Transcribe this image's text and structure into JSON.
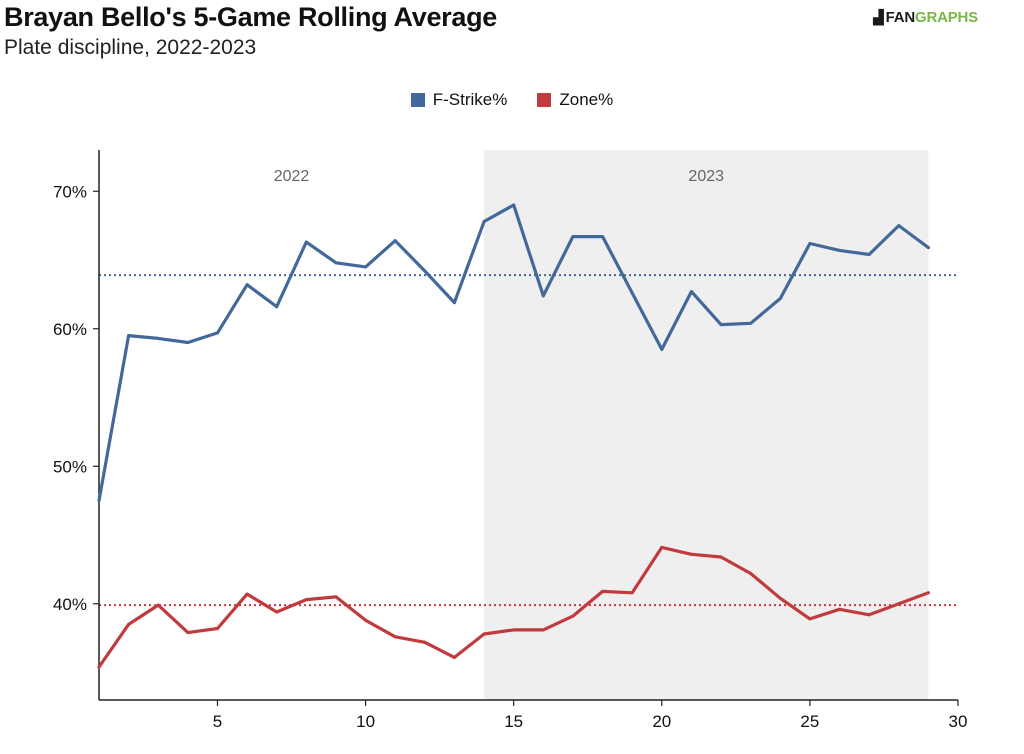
{
  "header": {
    "title": "Brayan Bello's 5-Game Rolling Average",
    "subtitle": "Plate discipline, 2022-2023",
    "logo_text": "FANGRAPHS",
    "logo_part1": "FAN",
    "logo_part2": "GRAPHS"
  },
  "colors": {
    "fstrike": "#43689a",
    "zone": "#c13a3d",
    "season_shade": "#efefef",
    "logo_green": "#7ab648"
  },
  "legend": [
    {
      "label": "F-Strike%",
      "color": "#43689a"
    },
    {
      "label": "Zone%",
      "color": "#c13a3d"
    }
  ],
  "chart_data": {
    "type": "line",
    "title": "Brayan Bello's 5-Game Rolling Average",
    "subtitle": "Plate discipline, 2022-2023",
    "xlabel": "",
    "ylabel": "",
    "xlim": [
      1,
      30
    ],
    "ylim": [
      33,
      73
    ],
    "x_ticks": [
      5,
      10,
      15,
      20,
      25,
      30
    ],
    "y_ticks": [
      40,
      50,
      60,
      70
    ],
    "y_tick_labels": [
      "40%",
      "50%",
      "60%",
      "70%"
    ],
    "x": [
      1,
      2,
      3,
      4,
      5,
      6,
      7,
      8,
      9,
      10,
      11,
      12,
      13,
      14,
      15,
      16,
      17,
      18,
      19,
      20,
      21,
      22,
      23,
      24,
      25,
      26,
      27,
      28,
      29
    ],
    "series": [
      {
        "name": "F-Strike%",
        "color": "#43689a",
        "values": [
          47.5,
          59.5,
          59.3,
          59.0,
          59.7,
          63.2,
          61.6,
          66.3,
          64.8,
          64.5,
          66.4,
          64.2,
          61.9,
          67.8,
          69.0,
          62.4,
          66.7,
          66.7,
          62.6,
          58.5,
          62.7,
          60.3,
          60.4,
          62.2,
          66.2,
          65.7,
          65.4,
          67.5,
          65.9
        ]
      },
      {
        "name": "Zone%",
        "color": "#c13a3d",
        "values": [
          35.4,
          38.5,
          39.9,
          37.9,
          38.2,
          40.7,
          39.4,
          40.3,
          40.5,
          38.8,
          37.6,
          37.2,
          36.1,
          37.8,
          38.1,
          38.1,
          39.1,
          40.9,
          40.8,
          44.1,
          43.6,
          43.4,
          42.2,
          40.4,
          38.9,
          39.6,
          39.2,
          40.0,
          40.8
        ]
      }
    ],
    "averages": [
      {
        "series": "F-Strike%",
        "value": 63.9,
        "style": "dotted",
        "color": "#43689a"
      },
      {
        "series": "Zone%",
        "value": 39.9,
        "style": "dotted",
        "color": "#c13a3d"
      }
    ],
    "season_regions": [
      {
        "label": "2022",
        "x_start": 1,
        "x_end": 14,
        "shaded": false
      },
      {
        "label": "2023",
        "x_start": 14,
        "x_end": 29,
        "shaded": true
      }
    ],
    "grid": false,
    "legend_position": "top-center"
  }
}
